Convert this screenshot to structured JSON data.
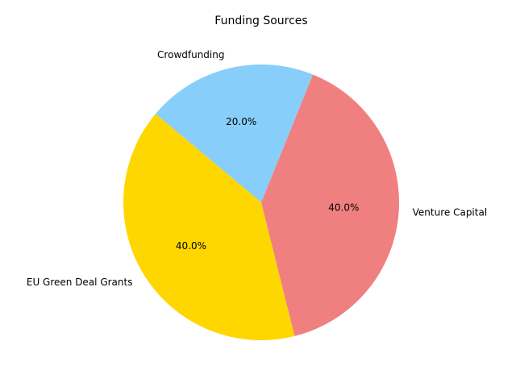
{
  "chart_data": {
    "type": "pie",
    "title": "Funding Sources",
    "start_angle_deg": 140,
    "direction": "counterclockwise",
    "slices": [
      {
        "label": "EU Green Deal Grants",
        "value": 40,
        "pct_label": "40.0%",
        "color": "#ffd700"
      },
      {
        "label": "Venture Capital",
        "value": 40,
        "pct_label": "40.0%",
        "color": "#f08080"
      },
      {
        "label": "Crowdfunding",
        "value": 20,
        "pct_label": "20.0%",
        "color": "#87cefa"
      }
    ]
  }
}
